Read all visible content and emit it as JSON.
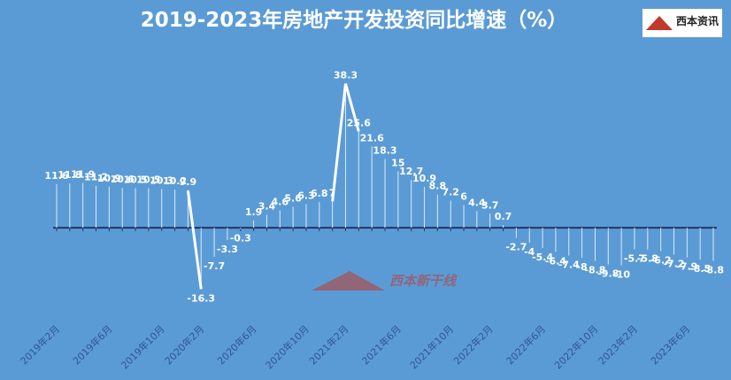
{
  "chart_data": {
    "type": "line",
    "title": "2019-2023年房地产开发投资同比增速（%）",
    "logo_text": "西本资讯",
    "watermark": "西本新干线",
    "color": "#ffffff",
    "categories": [
      "2019年2月",
      null,
      null,
      null,
      "2019年6月",
      null,
      null,
      null,
      "2019年10月",
      null,
      null,
      "2020年2月",
      null,
      null,
      null,
      "2020年6月",
      null,
      null,
      null,
      "2020年10月",
      null,
      null,
      "2021年2月",
      null,
      null,
      null,
      "2021年6月",
      null,
      null,
      null,
      "2021年10月",
      null,
      null,
      "2022年2月",
      null,
      null,
      null,
      "2022年6月",
      null,
      null,
      null,
      "2022年10月",
      null,
      null,
      "2023年2月",
      null,
      null,
      null,
      "2023年6月",
      null,
      null
    ],
    "values": [
      11.6,
      11.8,
      11.9,
      11.2,
      10.9,
      10.6,
      10.5,
      10.5,
      10.3,
      10.2,
      9.9,
      -16.3,
      -7.7,
      -3.3,
      -0.3,
      1.9,
      3.4,
      4.6,
      5.6,
      6.3,
      6.8,
      7.0,
      38.3,
      25.6,
      21.6,
      18.3,
      15.0,
      12.7,
      10.9,
      8.8,
      7.2,
      6.0,
      4.4,
      3.7,
      0.7,
      -2.7,
      -4.0,
      -5.4,
      -6.4,
      -7.4,
      -8.0,
      -8.8,
      -9.8,
      -10.0,
      -5.7,
      -5.8,
      -6.2,
      -7.2,
      -7.9,
      -8.5,
      -8.8
    ],
    "ylim": [
      -20,
      45
    ]
  }
}
